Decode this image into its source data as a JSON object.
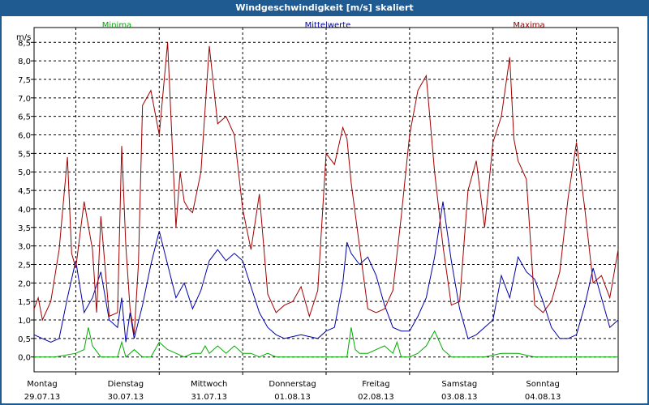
{
  "window": {
    "title": "Windgeschwindigkeit [m/s] skaliert"
  },
  "colors": {
    "min": "#00aa00",
    "mean": "#0000aa",
    "max": "#a00000",
    "grid": "#000000"
  },
  "chart_data": {
    "type": "line",
    "title": "Windgeschwindigkeit [m/s] skaliert",
    "ylabel": "m/s",
    "ylim": [
      -0.4,
      8.9
    ],
    "yticks": [
      "0,0",
      "0,5",
      "1,0",
      "1,5",
      "2,0",
      "2,5",
      "3,0",
      "3,5",
      "4,0",
      "4,5",
      "5,0",
      "5,5",
      "6,0",
      "6,5",
      "7,0",
      "7,5",
      "8,0",
      "8,5"
    ],
    "ytick_values": [
      0,
      0.5,
      1,
      1.5,
      2,
      2.5,
      3,
      3.5,
      4,
      4.5,
      5,
      5.5,
      6,
      6.5,
      7,
      7.5,
      8,
      8.5
    ],
    "xlim": [
      0,
      7
    ],
    "days": [
      {
        "day": "Montag",
        "date": "29.07.13"
      },
      {
        "day": "Dienstag",
        "date": "30.07.13"
      },
      {
        "day": "Mittwoch",
        "date": "31.07.13"
      },
      {
        "day": "Donnerstag",
        "date": "01.08.13"
      },
      {
        "day": "Freitag",
        "date": "02.08.13"
      },
      {
        "day": "Samstag",
        "date": "03.08.13"
      },
      {
        "day": "Sonntag",
        "date": "04.08.13"
      }
    ],
    "grid": true,
    "legend_placement": "top",
    "series": [
      {
        "name": "Minima",
        "x": [
          0,
          0.25,
          0.5,
          0.6,
          0.65,
          0.7,
          0.8,
          0.9,
          1.0,
          1.05,
          1.1,
          1.15,
          1.2,
          1.3,
          1.4,
          1.5,
          1.6,
          1.7,
          1.8,
          1.9,
          2.0,
          2.05,
          2.1,
          2.2,
          2.3,
          2.4,
          2.5,
          2.6,
          2.7,
          2.8,
          2.9,
          3.0,
          3.2,
          3.4,
          3.6,
          3.75,
          3.8,
          3.85,
          3.9,
          4.0,
          4.1,
          4.2,
          4.3,
          4.35,
          4.4,
          4.5,
          4.6,
          4.7,
          4.8,
          4.9,
          5.0,
          5.2,
          5.4,
          5.6,
          5.8,
          6.0,
          6.2,
          6.4,
          6.6,
          6.8,
          7.0
        ],
        "values": [
          0,
          0,
          0.1,
          0.2,
          0.8,
          0.3,
          0,
          0,
          0,
          0.4,
          0,
          0.1,
          0.2,
          0,
          0,
          0.4,
          0.2,
          0.1,
          0,
          0.1,
          0.1,
          0.3,
          0.1,
          0.3,
          0.1,
          0.3,
          0.1,
          0.1,
          0,
          0.1,
          0,
          0,
          0,
          0,
          0,
          0,
          0.8,
          0.2,
          0.1,
          0.1,
          0.2,
          0.3,
          0.1,
          0.4,
          0,
          0,
          0.1,
          0.3,
          0.7,
          0.2,
          0,
          0,
          0,
          0.1,
          0.1,
          0,
          0,
          0,
          0,
          0,
          0
        ]
      },
      {
        "name": "Mittelwerte",
        "x": [
          0,
          0.1,
          0.2,
          0.3,
          0.4,
          0.5,
          0.6,
          0.7,
          0.8,
          0.9,
          1.0,
          1.05,
          1.1,
          1.15,
          1.2,
          1.3,
          1.4,
          1.5,
          1.6,
          1.7,
          1.8,
          1.9,
          2.0,
          2.1,
          2.2,
          2.3,
          2.4,
          2.5,
          2.6,
          2.7,
          2.8,
          2.9,
          3.0,
          3.2,
          3.4,
          3.5,
          3.6,
          3.7,
          3.75,
          3.8,
          3.9,
          4.0,
          4.1,
          4.2,
          4.3,
          4.4,
          4.5,
          4.6,
          4.7,
          4.8,
          4.9,
          5.0,
          5.1,
          5.2,
          5.3,
          5.5,
          5.6,
          5.7,
          5.8,
          5.9,
          6.0,
          6.1,
          6.2,
          6.3,
          6.4,
          6.5,
          6.6,
          6.7,
          6.8,
          6.9,
          7.0
        ],
        "values": [
          0.6,
          0.5,
          0.4,
          0.5,
          1.6,
          2.6,
          1.2,
          1.6,
          2.3,
          1.0,
          0.8,
          1.6,
          0.4,
          1.2,
          0.5,
          1.4,
          2.5,
          3.4,
          2.5,
          1.6,
          2.0,
          1.3,
          1.8,
          2.6,
          2.9,
          2.6,
          2.8,
          2.6,
          1.9,
          1.2,
          0.8,
          0.6,
          0.5,
          0.6,
          0.5,
          0.7,
          0.8,
          2.0,
          3.1,
          2.8,
          2.5,
          2.7,
          2.2,
          1.4,
          0.8,
          0.7,
          0.7,
          1.1,
          1.6,
          2.7,
          4.2,
          2.6,
          1.3,
          0.5,
          0.6,
          1.0,
          2.2,
          1.6,
          2.7,
          2.3,
          2.1,
          1.5,
          0.8,
          0.5,
          0.5,
          0.6,
          1.4,
          2.4,
          1.6,
          0.8,
          1.0
        ]
      },
      {
        "name": "Maxima",
        "x": [
          0,
          0.05,
          0.1,
          0.2,
          0.3,
          0.4,
          0.45,
          0.5,
          0.6,
          0.7,
          0.75,
          0.8,
          0.9,
          1.0,
          1.05,
          1.1,
          1.15,
          1.2,
          1.25,
          1.3,
          1.4,
          1.5,
          1.6,
          1.7,
          1.75,
          1.8,
          1.85,
          1.9,
          2.0,
          2.1,
          2.2,
          2.3,
          2.4,
          2.5,
          2.6,
          2.7,
          2.8,
          2.9,
          3.0,
          3.1,
          3.2,
          3.3,
          3.4,
          3.5,
          3.6,
          3.7,
          3.75,
          3.8,
          3.9,
          4.0,
          4.1,
          4.2,
          4.3,
          4.4,
          4.5,
          4.6,
          4.7,
          4.8,
          4.9,
          5.0,
          5.1,
          5.2,
          5.3,
          5.4,
          5.5,
          5.6,
          5.7,
          5.75,
          5.8,
          5.9,
          6.0,
          6.1,
          6.2,
          6.3,
          6.4,
          6.5,
          6.6,
          6.7,
          6.8,
          6.9,
          7.0
        ],
        "values": [
          1.3,
          1.6,
          1.0,
          1.5,
          2.9,
          5.4,
          2.8,
          2.4,
          4.2,
          2.9,
          1.2,
          3.8,
          1.1,
          1.2,
          5.7,
          3.0,
          1.3,
          0.6,
          2.5,
          6.8,
          7.2,
          6.0,
          8.5,
          3.5,
          5.0,
          4.2,
          4.0,
          3.9,
          5.0,
          8.4,
          6.3,
          6.5,
          6.0,
          4.0,
          2.9,
          4.4,
          1.7,
          1.2,
          1.4,
          1.5,
          1.9,
          1.1,
          1.8,
          5.5,
          5.2,
          6.2,
          5.9,
          4.7,
          3.0,
          1.3,
          1.2,
          1.3,
          1.8,
          3.8,
          6.0,
          7.2,
          7.6,
          5.0,
          3.0,
          1.4,
          1.5,
          4.5,
          5.3,
          3.5,
          5.8,
          6.5,
          8.1,
          5.9,
          5.3,
          4.8,
          1.4,
          1.2,
          1.5,
          2.3,
          4.3,
          5.8,
          4.0,
          2.0,
          2.2,
          1.6,
          2.9
        ]
      }
    ]
  }
}
